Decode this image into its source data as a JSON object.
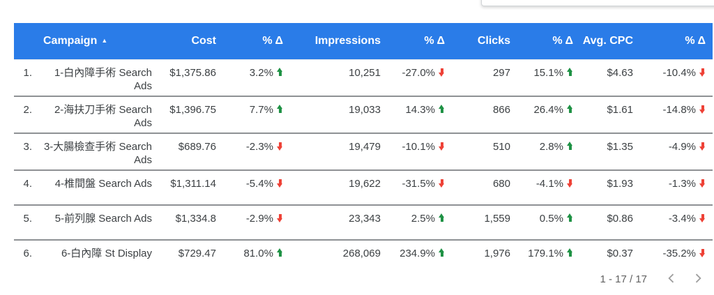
{
  "colors": {
    "header_bg": "#2a7ce8",
    "delta_up": "#1f9245",
    "delta_down": "#ee4237"
  },
  "table": {
    "columns": [
      "Campaign",
      "Cost",
      "% Δ",
      "Impressions",
      "% Δ",
      "Clicks",
      "% Δ",
      "Avg. CPC",
      "% Δ"
    ],
    "sort_indicator": "▲",
    "rows": [
      {
        "num": "1.",
        "campaign": "1-白內障手術 Search Ads",
        "cells": [
          {
            "v": "$1,375.86"
          },
          {
            "v": "3.2%",
            "dir": "up"
          },
          {
            "v": "10,251"
          },
          {
            "v": "-27.0%",
            "dir": "down"
          },
          {
            "v": "297"
          },
          {
            "v": "15.1%",
            "dir": "up"
          },
          {
            "v": "$4.63"
          },
          {
            "v": "-10.4%",
            "dir": "down"
          }
        ]
      },
      {
        "num": "2.",
        "campaign": "2-海扶刀手術 Search Ads",
        "cells": [
          {
            "v": "$1,396.75"
          },
          {
            "v": "7.7%",
            "dir": "up"
          },
          {
            "v": "19,033"
          },
          {
            "v": "14.3%",
            "dir": "up"
          },
          {
            "v": "866"
          },
          {
            "v": "26.4%",
            "dir": "up"
          },
          {
            "v": "$1.61"
          },
          {
            "v": "-14.8%",
            "dir": "down"
          }
        ]
      },
      {
        "num": "3.",
        "campaign": "3-大腸檢查手術 Search Ads",
        "cells": [
          {
            "v": "$689.76"
          },
          {
            "v": "-2.3%",
            "dir": "down"
          },
          {
            "v": "19,479"
          },
          {
            "v": "-10.1%",
            "dir": "down"
          },
          {
            "v": "510"
          },
          {
            "v": "2.8%",
            "dir": "up"
          },
          {
            "v": "$1.35"
          },
          {
            "v": "-4.9%",
            "dir": "down"
          }
        ]
      },
      {
        "num": "4.",
        "campaign": "4-椎間盤 Search Ads",
        "cells": [
          {
            "v": "$1,311.14"
          },
          {
            "v": "-5.4%",
            "dir": "down"
          },
          {
            "v": "19,622"
          },
          {
            "v": "-31.5%",
            "dir": "down"
          },
          {
            "v": "680"
          },
          {
            "v": "-4.1%",
            "dir": "down"
          },
          {
            "v": "$1.93"
          },
          {
            "v": "-1.3%",
            "dir": "down"
          }
        ]
      },
      {
        "num": "5.",
        "campaign": "5-前列腺 Search Ads",
        "cells": [
          {
            "v": "$1,334.8"
          },
          {
            "v": "-2.9%",
            "dir": "down"
          },
          {
            "v": "23,343"
          },
          {
            "v": "2.5%",
            "dir": "up"
          },
          {
            "v": "1,559"
          },
          {
            "v": "0.5%",
            "dir": "up"
          },
          {
            "v": "$0.86"
          },
          {
            "v": "-3.4%",
            "dir": "down"
          }
        ]
      },
      {
        "num": "6.",
        "campaign": "6-白內障 St Display",
        "cells": [
          {
            "v": "$729.47"
          },
          {
            "v": "81.0%",
            "dir": "up"
          },
          {
            "v": "268,069"
          },
          {
            "v": "234.9%",
            "dir": "up"
          },
          {
            "v": "1,976"
          },
          {
            "v": "179.1%",
            "dir": "up"
          },
          {
            "v": "$0.37"
          },
          {
            "v": "-35.2%",
            "dir": "down"
          }
        ]
      }
    ],
    "pagination": {
      "label": "1 - 17 / 17"
    }
  }
}
